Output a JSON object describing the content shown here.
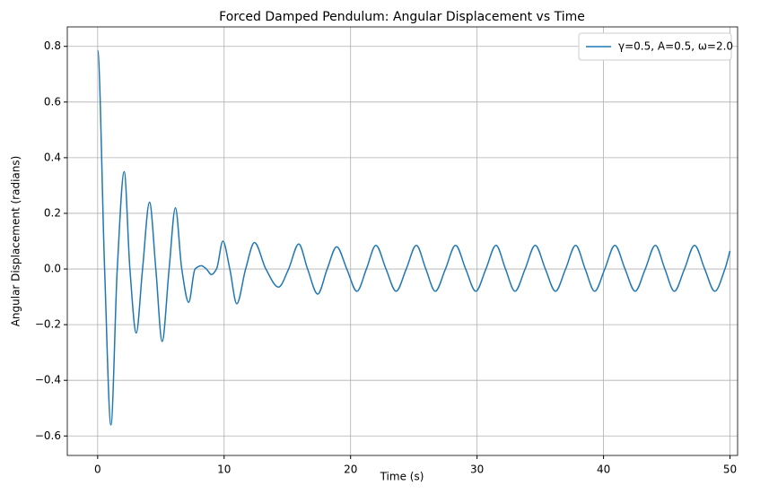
{
  "chart_data": {
    "type": "line",
    "title": "Forced Damped Pendulum: Angular Displacement vs Time",
    "xlabel": "Time (s)",
    "ylabel": "Angular Displacement (radians)",
    "x": [
      0,
      0.55,
      1.05,
      1.55,
      2.1,
      2.55,
      3.05,
      3.55,
      4.1,
      4.6,
      5.1,
      5.65,
      6.15,
      6.65,
      7.2,
      7.7,
      8.2,
      8.6,
      9.0,
      9.4,
      9.9,
      10.45,
      11.0,
      11.7,
      12.4,
      13.3,
      14.3,
      15.1,
      15.9,
      16.6,
      17.4,
      18.15,
      18.9,
      19.7,
      20.5,
      21.25,
      22.0,
      22.8,
      23.6,
      24.4,
      25.2,
      25.95,
      26.7,
      27.5,
      28.3,
      29.1,
      29.9,
      30.7,
      31.5,
      32.25,
      33.0,
      33.8,
      34.6,
      35.4,
      36.2,
      37.0,
      37.8,
      38.55,
      39.3,
      40.1,
      40.9,
      41.7,
      42.5,
      43.3,
      44.1,
      44.85,
      45.6,
      46.4,
      47.2,
      48.0,
      48.8,
      49.6,
      50.0
    ],
    "series": [
      {
        "name": "γ=0.5, A=0.5, ω=2.0",
        "color": "#1f77b4",
        "values": [
          0.785,
          0.0,
          -0.56,
          0.0,
          0.35,
          0.0,
          -0.23,
          0.0,
          0.24,
          0.0,
          -0.26,
          0.0,
          0.22,
          0.0,
          -0.12,
          0.0,
          0.012,
          0.0,
          -0.02,
          0.0,
          0.1,
          0.0,
          -0.125,
          0.0,
          0.095,
          0.0,
          -0.065,
          0.0,
          0.09,
          0.0,
          -0.09,
          0.0,
          0.08,
          0.0,
          -0.08,
          0.0,
          0.085,
          0.0,
          -0.08,
          0.0,
          0.085,
          0.0,
          -0.08,
          0.0,
          0.085,
          0.0,
          -0.08,
          0.0,
          0.085,
          0.0,
          -0.08,
          0.0,
          0.085,
          0.0,
          -0.08,
          0.0,
          0.085,
          0.0,
          -0.08,
          0.0,
          0.085,
          0.0,
          -0.08,
          0.0,
          0.085,
          0.0,
          -0.08,
          0.0,
          0.085,
          0.0,
          -0.08,
          0.0,
          0.065
        ]
      }
    ],
    "xlim": [
      -2.4,
      50.6
    ],
    "ylim": [
      -0.67,
      0.87
    ],
    "xticks": [
      0,
      10,
      20,
      30,
      40,
      50
    ],
    "yticks": [
      {
        "value": -0.6,
        "label": "−0.6"
      },
      {
        "value": -0.4,
        "label": "−0.4"
      },
      {
        "value": -0.2,
        "label": "−0.2"
      },
      {
        "value": 0,
        "label": "0.0"
      },
      0.2,
      0.4,
      0.6,
      0.8
    ],
    "grid": true,
    "legend": "upper right"
  }
}
